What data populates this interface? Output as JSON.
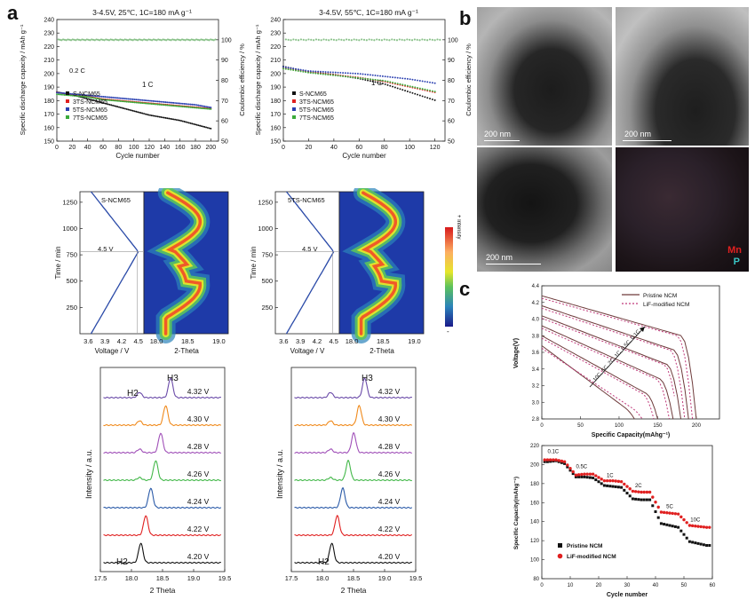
{
  "panel_labels": {
    "a": "a",
    "b": "b",
    "c": "c"
  },
  "cycling_25": {
    "title": "3-4.5V, 25℃, 1C=180 mA g⁻¹",
    "ylabel": "Specific discharge capacity / mAh g⁻¹",
    "ylabel2": "Coulombic efficiency / %",
    "xlabel": "Cycle number",
    "rate_label_1": "0.2 C",
    "rate_label_2": "1 C",
    "yticks": [
      "150",
      "160",
      "170",
      "180",
      "190",
      "200",
      "210",
      "220",
      "230",
      "240"
    ],
    "y2ticks": [
      "50",
      "60",
      "70",
      "80",
      "90",
      "100"
    ],
    "xticks": [
      "0",
      "20",
      "40",
      "60",
      "80",
      "100",
      "120",
      "140",
      "160",
      "180",
      "200"
    ],
    "legend": [
      "S-NCM65",
      "3TS-NCM65",
      "5TS-NCM65",
      "7TS-NCM65"
    ]
  },
  "cycling_55": {
    "title": "3-4.5V, 55℃, 1C=180 mA g⁻¹",
    "ylabel": "Specific discharge capacity / mAh g⁻¹",
    "ylabel2": "Coulombic efficiency / %",
    "xlabel": "Cycle number",
    "rate_label": "1 C",
    "yticks": [
      "150",
      "160",
      "170",
      "180",
      "190",
      "200",
      "210",
      "220",
      "230",
      "240"
    ],
    "y2ticks": [
      "50",
      "60",
      "70",
      "80",
      "90",
      "100"
    ],
    "xticks": [
      "0",
      "20",
      "40",
      "60",
      "80",
      "100",
      "120"
    ],
    "legend": [
      "S-NCM65",
      "3TS-NCM65",
      "5TS-NCM65",
      "7TS-NCM65"
    ]
  },
  "insitu_left": {
    "sample": "S-NCM65",
    "voltage_mark": "4.5 V",
    "ylabel": "Time / min",
    "xlabel_v": "Voltage / V",
    "xlabel_t": "2-Theta",
    "yticks": [
      "250",
      "500",
      "750",
      "1000",
      "1250"
    ],
    "vticks": [
      "3.6",
      "3.9",
      "4.2",
      "4.5"
    ],
    "tticks": [
      "18.0",
      "18.5",
      "19.0"
    ]
  },
  "insitu_right": {
    "sample": "5TS-NCM65",
    "voltage_mark": "4.5 V",
    "ylabel": "Time / min",
    "xlabel_v": "Voltage / V",
    "xlabel_t": "2-Theta",
    "yticks": [
      "250",
      "500",
      "750",
      "1000",
      "1250"
    ],
    "vticks": [
      "3.6",
      "3.9",
      "4.2",
      "4.5"
    ],
    "tticks": [
      "18.0",
      "18.5",
      "19.0"
    ]
  },
  "colorbar": {
    "plus": "+ Intensity",
    "minus": "-"
  },
  "xrd_left": {
    "ylabel": "Intensity / a.u.",
    "xlabel": "2 Theta",
    "xticks": [
      "17.5",
      "18.0",
      "18.5",
      "19.0",
      "19.5"
    ],
    "peak_h2": "H2",
    "peak_h3": "H3",
    "peak_h2_low": "H2",
    "voltages": [
      "4.32 V",
      "4.30 V",
      "4.28 V",
      "4.26 V",
      "4.24 V",
      "4.22 V",
      "4.20 V"
    ],
    "colors": [
      "#6a4aa8",
      "#f08a1c",
      "#a050b8",
      "#44b84a",
      "#2a5aa8",
      "#e02020",
      "#111111"
    ]
  },
  "xrd_right": {
    "ylabel": "Intensity / a.u.",
    "xlabel": "2 Theta",
    "xticks": [
      "17.5",
      "18.0",
      "18.5",
      "19.0",
      "19.5"
    ],
    "peak_h3": "H3",
    "peak_h2_low": "H2",
    "voltages": [
      "4.32 V",
      "4.30 V",
      "4.28 V",
      "4.26 V",
      "4.24 V",
      "4.22 V",
      "4.20 V"
    ],
    "colors": [
      "#6a4aa8",
      "#f08a1c",
      "#a050b8",
      "#44b84a",
      "#2a5aa8",
      "#e02020",
      "#111111"
    ]
  },
  "tem": {
    "scale_1": "200 nm",
    "scale_2": "200 nm",
    "scale_3": "200 nm",
    "element_mn": "Mn",
    "element_p": "P",
    "mn_color": "#e02020",
    "p_color": "#39c4c4"
  },
  "voltage_profile": {
    "ylabel": "Voltage(V)",
    "xlabel": "Specific Capacity(mAhg⁻¹)",
    "legend": [
      "Pristine NCM",
      "LiF-modified NCM"
    ],
    "yticks": [
      "2.8",
      "3.0",
      "3.2",
      "3.4",
      "3.6",
      "3.8",
      "4.0",
      "4.2",
      "4.4"
    ],
    "xticks": [
      "0",
      "50",
      "100",
      "150",
      "200"
    ],
    "rate_arrow_label": "10C, 5C, 2C, 1C, 0.5C, 0.1C"
  },
  "rate_capability": {
    "ylabel": "Specific Capacity(mAhg⁻¹)",
    "xlabel": "Cycle number",
    "legend": [
      "Pristine NCM",
      "LiF-modified NCM"
    ],
    "legend_colors": [
      "#111111",
      "#e02020"
    ],
    "yticks": [
      "80",
      "100",
      "120",
      "140",
      "160",
      "180",
      "200",
      "220"
    ],
    "xticks": [
      "0",
      "10",
      "20",
      "30",
      "40",
      "50",
      "60"
    ],
    "rate_labels": [
      "0.1C",
      "0.5C",
      "1C",
      "2C",
      "5C",
      "10C"
    ]
  },
  "chart_data": [
    {
      "type": "scatter",
      "title": "3-4.5V, 25℃, 1C=180 mA g⁻¹",
      "xlabel": "Cycle number",
      "ylabel": "Specific discharge capacity / mAh g⁻¹",
      "xlim": [
        0,
        210
      ],
      "ylim": [
        150,
        240
      ],
      "x": [
        0,
        20,
        40,
        60,
        80,
        100,
        120,
        140,
        160,
        180,
        200
      ],
      "series": [
        {
          "name": "S-NCM65",
          "values": [
            186,
            184,
            181,
            178,
            175,
            172,
            169,
            167,
            165,
            162,
            159
          ]
        },
        {
          "name": "3TS-NCM65",
          "values": [
            186,
            184,
            183,
            181,
            180,
            179,
            178,
            177,
            176,
            175,
            174
          ]
        },
        {
          "name": "5TS-NCM65",
          "values": [
            186,
            185,
            184,
            183,
            182,
            181,
            180,
            179,
            178,
            177,
            175
          ]
        },
        {
          "name": "7TS-NCM65",
          "values": [
            185,
            184,
            183,
            181,
            180,
            179,
            178,
            177,
            176,
            175,
            174
          ]
        }
      ],
      "coulombic_efficiency": 100
    },
    {
      "type": "scatter",
      "title": "3-4.5V, 55℃, 1C=180 mA g⁻¹",
      "xlabel": "Cycle number",
      "ylabel": "Specific discharge capacity / mAh g⁻¹",
      "xlim": [
        0,
        128
      ],
      "ylim": [
        150,
        240
      ],
      "x": [
        0,
        20,
        40,
        60,
        80,
        100,
        120
      ],
      "series": [
        {
          "name": "S-NCM65",
          "values": [
            205,
            201,
            199,
            196,
            192,
            186,
            180
          ]
        },
        {
          "name": "3TS-NCM65",
          "values": [
            204,
            201,
            199,
            197,
            194,
            190,
            186
          ]
        },
        {
          "name": "5TS-NCM65",
          "values": [
            205,
            202,
            201,
            200,
            198,
            196,
            193
          ]
        },
        {
          "name": "7TS-NCM65",
          "values": [
            204,
            201,
            199,
            197,
            195,
            191,
            187
          ]
        }
      ],
      "coulombic_efficiency": 100
    },
    {
      "type": "scatter",
      "xlabel": "Cycle number",
      "ylabel": "Specific Capacity(mAhg⁻¹)",
      "xlim": [
        0,
        60
      ],
      "ylim": [
        80,
        220
      ],
      "x": [
        2,
        5,
        8,
        12,
        15,
        18,
        22,
        25,
        28,
        32,
        35,
        38,
        42,
        45,
        48,
        52,
        55,
        58
      ],
      "series": [
        {
          "name": "Pristine NCM",
          "values": [
            203,
            204,
            201,
            187,
            187,
            186,
            178,
            177,
            176,
            164,
            163,
            163,
            138,
            136,
            134,
            119,
            117,
            115
          ]
        },
        {
          "name": "LiF-modified NCM",
          "values": [
            205,
            205,
            203,
            189,
            190,
            190,
            183,
            183,
            182,
            172,
            171,
            171,
            150,
            149,
            148,
            136,
            135,
            134
          ]
        }
      ]
    },
    {
      "type": "line",
      "xlabel": "Specific Capacity(mAhg⁻¹)",
      "ylabel": "Voltage(V)",
      "xlim": [
        0,
        230
      ],
      "ylim": [
        2.8,
        4.4
      ],
      "series": [
        {
          "name": "Pristine NCM",
          "capacities_by_rate": [
            200,
            190,
            180,
            170,
            150,
            120
          ]
        },
        {
          "name": "LiF-modified NCM",
          "capacities_by_rate": [
            195,
            185,
            176,
            165,
            145,
            130
          ]
        }
      ],
      "rates": [
        "0.1C",
        "0.5C",
        "1C",
        "2C",
        "5C",
        "10C"
      ]
    }
  ]
}
